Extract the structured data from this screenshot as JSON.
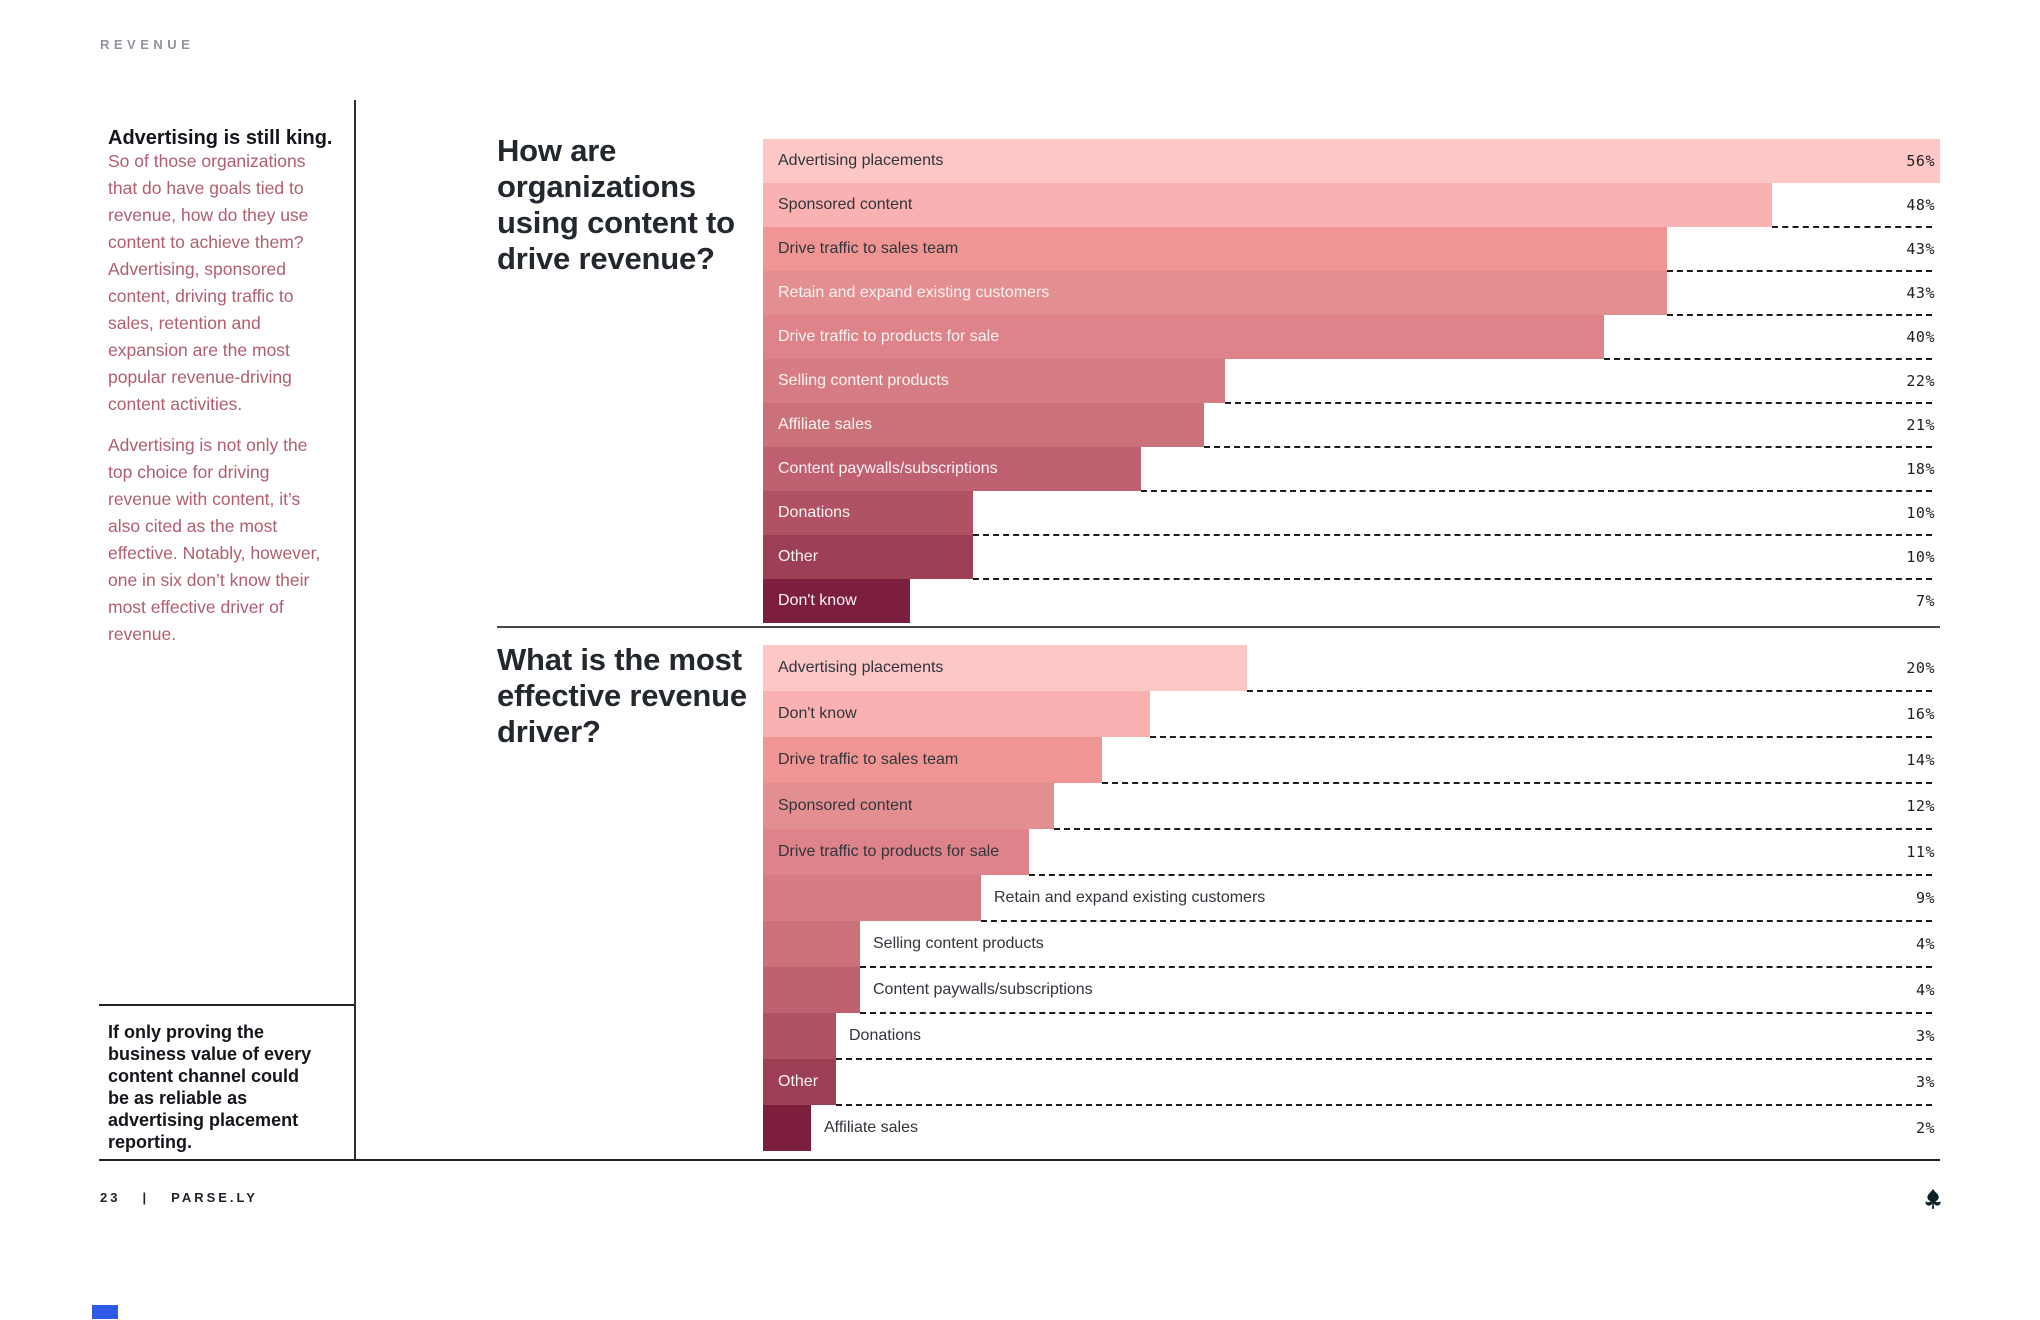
{
  "page": {
    "kicker": "REVENUE",
    "footer": {
      "page_number": "23",
      "separator": "|",
      "brand": "PARSE.LY"
    }
  },
  "sidebar": {
    "heading": "Advertising is still king.",
    "paragraphs": [
      "So of those organizations that do have goals tied to revenue, how do they use content to achieve them? Advertising, sponsored content, driving traffic to sales, retention and expansion are the most popular revenue-driving content activities.",
      "Advertising is not only the top choice for driving revenue with content, it’s also cited as the most effective. Notably, however, one in six don’t know their most effective driver of revenue."
    ],
    "callout": "If only proving the business value of every content channel could be as reliable as advertising placement reporting."
  },
  "chart_data": [
    {
      "type": "bar",
      "orientation": "horizontal",
      "title": "How are organizations using content to drive revenue?",
      "unit": "%",
      "categories": [
        "Advertising placements",
        "Sponsored content",
        "Drive traffic to sales team",
        "Retain and expand existing customers",
        "Drive traffic to products for sale",
        "Selling content products",
        "Affiliate sales",
        "Content paywalls/subscriptions",
        "Donations",
        "Other",
        "Don't know"
      ],
      "values": [
        56,
        48,
        43,
        43,
        40,
        22,
        21,
        18,
        10,
        10,
        7
      ],
      "value_labels": [
        "56%",
        "48%",
        "43%",
        "43%",
        "40%",
        "22%",
        "21%",
        "18%",
        "10%",
        "10%",
        "7%"
      ],
      "bar_colors": [
        "#fcc7c5",
        "#f9b2b1",
        "#ef9593",
        "#e38f92",
        "#dd8389",
        "#d57d82",
        "#cb717a",
        "#bf6071",
        "#b05264",
        "#9d3f55",
        "#7c1f3d"
      ],
      "label_inside": [
        true,
        true,
        true,
        true,
        true,
        true,
        true,
        true,
        true,
        true,
        true
      ],
      "label_light": [
        false,
        false,
        false,
        true,
        true,
        true,
        true,
        true,
        true,
        true,
        true
      ],
      "full_width_value": 56,
      "gridlines": "dashed row separators from bar end to right edge",
      "value_axis_hidden": true
    },
    {
      "type": "bar",
      "orientation": "horizontal",
      "title": "What is the most effective revenue driver?",
      "unit": "%",
      "categories": [
        "Advertising placements",
        "Don't know",
        "Drive traffic to sales team",
        "Sponsored content",
        "Drive traffic to products for sale",
        "Retain and expand existing customers",
        "Selling content products",
        "Content paywalls/subscriptions",
        "Donations",
        "Other",
        "Affiliate sales"
      ],
      "values": [
        20,
        16,
        14,
        12,
        11,
        9,
        4,
        4,
        3,
        3,
        2
      ],
      "value_labels": [
        "20%",
        "16%",
        "14%",
        "12%",
        "11%",
        "9%",
        "4%",
        "4%",
        "3%",
        "3%",
        "2%"
      ],
      "bar_colors": [
        "#fcc7c5",
        "#f9b2b1",
        "#ef9593",
        "#e38f92",
        "#dd8389",
        "#d57d82",
        "#cb717a",
        "#bf6071",
        "#b05264",
        "#9d3f55",
        "#7c1f3d"
      ],
      "label_inside": [
        true,
        true,
        true,
        true,
        true,
        false,
        false,
        false,
        false,
        true,
        false
      ],
      "label_light": [
        false,
        false,
        false,
        false,
        false,
        false,
        false,
        false,
        false,
        true,
        false
      ],
      "full_width_value": 48.6,
      "gridlines": "dashed row separators from bar end to right edge",
      "value_axis_hidden": true
    }
  ],
  "colors": {
    "accent_square": "#2f5be8",
    "dashed_separator": "#1c1c21",
    "sidebar_text": "#b05e70",
    "kicker_text": "#8f949d",
    "brand_mark": "#0e2129"
  },
  "icons": {
    "brand_mark": "parsely-leaf-icon"
  }
}
